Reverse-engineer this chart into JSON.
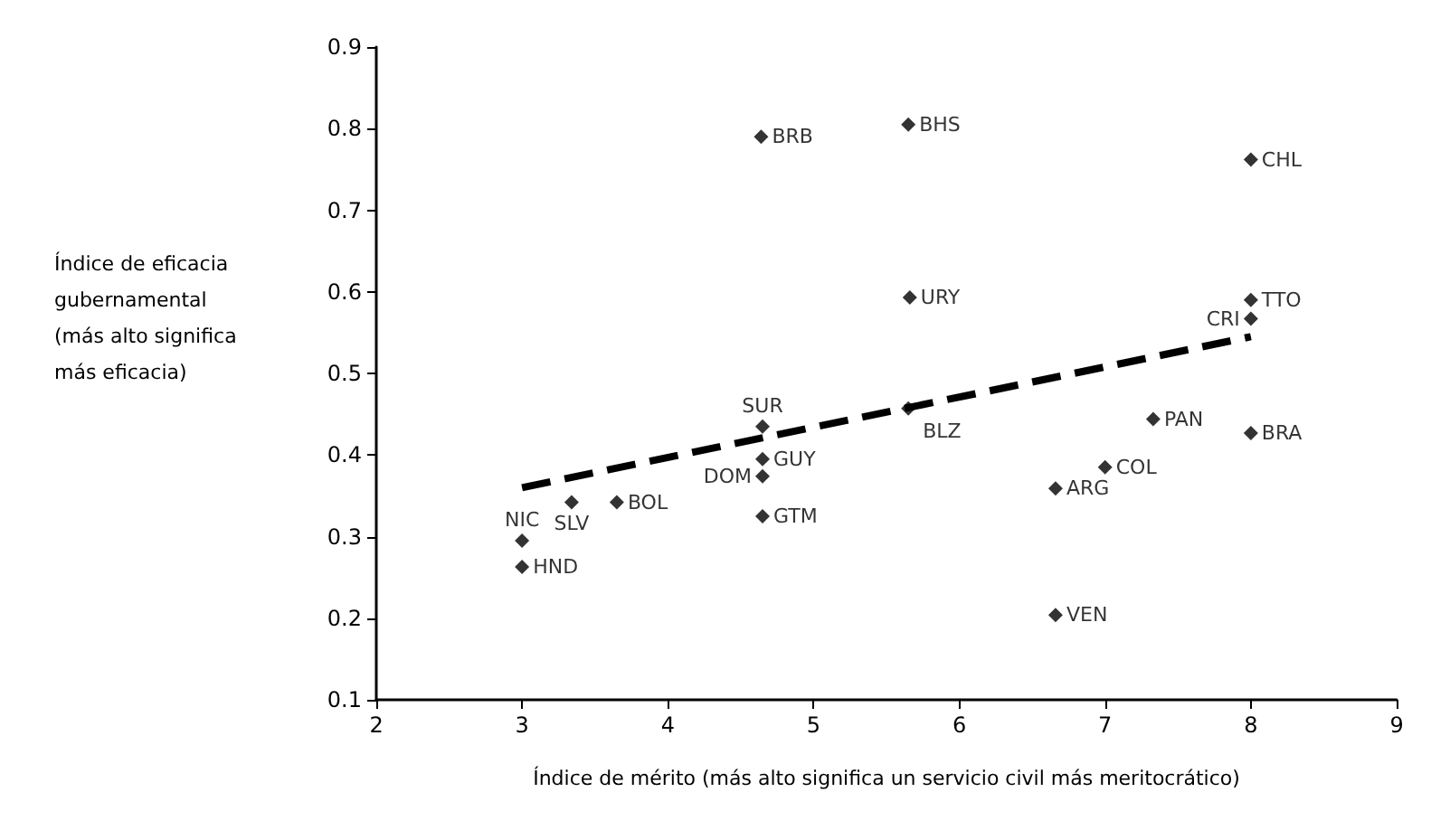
{
  "chart_data": {
    "type": "scatter",
    "xlabel": "Índice de mérito (más alto significa un servicio civil más meritocrático)",
    "ylabel": "Índice de eficacia\ngubernamental\n(más alto significa\nmás eficacia)",
    "xlim": [
      2,
      9
    ],
    "xticks": [
      2,
      3,
      4,
      5,
      6,
      7,
      8,
      9
    ],
    "ylim": [
      0.1,
      0.9
    ],
    "yticks": [
      0.1,
      0.2,
      0.3,
      0.4,
      0.5,
      0.6,
      0.7,
      0.8,
      0.9
    ],
    "grid": false,
    "marker": "diamond",
    "series": [
      {
        "type": "scatter",
        "color": "#000000",
        "x": [
          4.64,
          5.65,
          8,
          5.66,
          8,
          8,
          4.65,
          4.65,
          4.65,
          4.65,
          3.34,
          3.65,
          3,
          3,
          5.65,
          7.33,
          8,
          7,
          6.66,
          6.66
        ],
        "values": [
          0.79,
          0.805,
          0.762,
          0.593,
          0.59,
          0.567,
          0.435,
          0.395,
          0.374,
          0.325,
          0.342,
          0.342,
          0.295,
          0.263,
          0.457,
          0.444,
          0.427,
          0.385,
          0.359,
          0.204
        ]
      },
      {
        "type": "line",
        "color": "#000000",
        "line_style": "dashed",
        "marker": "none",
        "x": [
          3,
          8
        ],
        "values": [
          0.36,
          0.545
        ]
      }
    ],
    "annotations": [
      {
        "text": "BRB",
        "x": 4.64,
        "y": 0.79
      },
      {
        "text": "BHS",
        "x": 5.65,
        "y": 0.805
      },
      {
        "text": "CHL",
        "x": 8,
        "y": 0.762
      },
      {
        "text": "URY",
        "x": 5.66,
        "y": 0.593
      },
      {
        "text": "TTO",
        "x": 8,
        "y": 0.59
      },
      {
        "text": "CRI",
        "x": 8,
        "y": 0.567
      },
      {
        "text": "SUR",
        "x": 4.65,
        "y": 0.435
      },
      {
        "text": "GUY",
        "x": 4.65,
        "y": 0.395
      },
      {
        "text": "DOM",
        "x": 4.65,
        "y": 0.374
      },
      {
        "text": "GTM",
        "x": 4.65,
        "y": 0.325
      },
      {
        "text": "SLV",
        "x": 3.34,
        "y": 0.342
      },
      {
        "text": "BOL",
        "x": 3.65,
        "y": 0.342
      },
      {
        "text": "NIC",
        "x": 3,
        "y": 0.295
      },
      {
        "text": "HND",
        "x": 3,
        "y": 0.263
      },
      {
        "text": "BLZ",
        "x": 5.65,
        "y": 0.457
      },
      {
        "text": "PAN",
        "x": 7.33,
        "y": 0.444
      },
      {
        "text": "BRA",
        "x": 8,
        "y": 0.427
      },
      {
        "text": "COL",
        "x": 7,
        "y": 0.385
      },
      {
        "text": "ARG",
        "x": 6.66,
        "y": 0.359
      },
      {
        "text": "VEN",
        "x": 6.66,
        "y": 0.204
      }
    ]
  }
}
